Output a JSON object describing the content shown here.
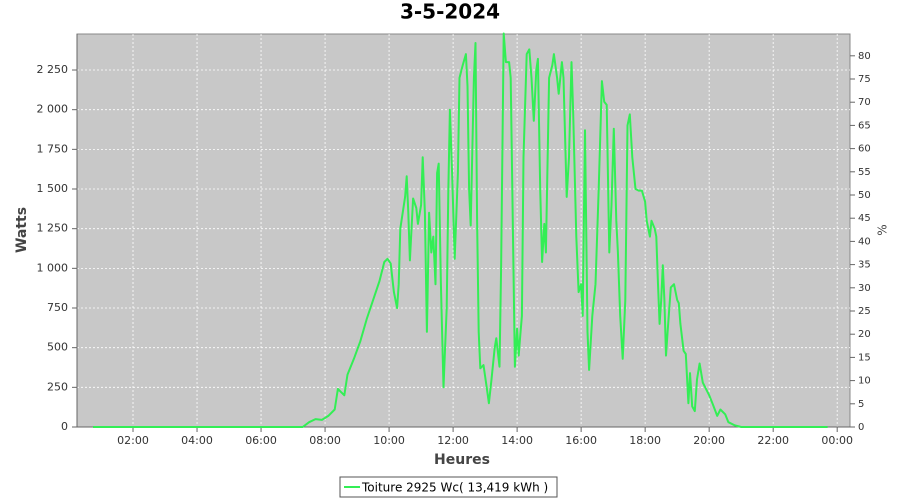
{
  "chart_data": {
    "type": "line",
    "title": "3-5-2024",
    "xlabel": "Heures",
    "ylabel": "Watts",
    "y2label": "%",
    "x": [
      0.75,
      7.3,
      7.5,
      7.7,
      7.9,
      8.1,
      8.3,
      8.4,
      8.6,
      8.7,
      8.9,
      9.1,
      9.3,
      9.5,
      9.7,
      9.85,
      9.95,
      10.05,
      10.15,
      10.25,
      10.3,
      10.35,
      10.5,
      10.55,
      10.6,
      10.65,
      10.75,
      10.85,
      10.9,
      11.0,
      11.05,
      11.12,
      11.18,
      11.25,
      11.32,
      11.38,
      11.45,
      11.5,
      11.55,
      11.62,
      11.7,
      11.8,
      11.85,
      11.9,
      11.97,
      12.05,
      12.15,
      12.2,
      12.3,
      12.4,
      12.45,
      12.5,
      12.55,
      12.65,
      12.7,
      12.75,
      12.8,
      12.85,
      12.95,
      13.05,
      13.12,
      13.2,
      13.3,
      13.35,
      13.45,
      13.5,
      13.58,
      13.65,
      13.75,
      13.8,
      13.87,
      13.93,
      14.0,
      14.05,
      14.1,
      14.15,
      14.2,
      14.3,
      14.38,
      14.45,
      14.52,
      14.6,
      14.65,
      14.72,
      14.78,
      14.85,
      14.9,
      15.0,
      15.1,
      15.15,
      15.25,
      15.3,
      15.4,
      15.45,
      15.55,
      15.62,
      15.7,
      15.75,
      15.85,
      15.92,
      16.0,
      16.05,
      16.12,
      16.2,
      16.25,
      16.35,
      16.45,
      16.55,
      16.65,
      16.72,
      16.8,
      16.88,
      16.95,
      17.02,
      17.1,
      17.15,
      17.22,
      17.3,
      17.38,
      17.45,
      17.52,
      17.6,
      17.7,
      17.8,
      17.9,
      18.0,
      18.05,
      18.15,
      18.2,
      18.3,
      18.35,
      18.4,
      18.45,
      18.5,
      18.55,
      18.6,
      18.65,
      18.7,
      18.8,
      18.9,
      19.0,
      19.05,
      19.1,
      19.2,
      19.27,
      19.35,
      19.4,
      19.47,
      19.55,
      19.62,
      19.7,
      19.8,
      20.0,
      20.1,
      20.25,
      20.35,
      20.5,
      20.6,
      20.8,
      21.0,
      23.7
    ],
    "series": [
      {
        "name": "Toiture 2925 Wc( 13,419 kWh )",
        "color": "#33ee55",
        "values": [
          0,
          0,
          30,
          50,
          45,
          70,
          110,
          240,
          200,
          330,
          430,
          540,
          680,
          800,
          920,
          1040,
          1060,
          1030,
          850,
          750,
          900,
          1250,
          1450,
          1580,
          1350,
          1050,
          1440,
          1380,
          1280,
          1400,
          1700,
          1350,
          600,
          1350,
          1100,
          1200,
          900,
          1600,
          1660,
          900,
          250,
          750,
          1480,
          2000,
          1600,
          1060,
          1600,
          2200,
          2280,
          2350,
          2150,
          1500,
          1270,
          2200,
          2420,
          1300,
          600,
          370,
          390,
          250,
          150,
          300,
          500,
          560,
          380,
          1000,
          2480,
          2300,
          2300,
          2200,
          1200,
          380,
          620,
          450,
          580,
          700,
          1700,
          2350,
          2380,
          2200,
          1930,
          2250,
          2320,
          1500,
          1040,
          1280,
          1100,
          2200,
          2280,
          2350,
          2200,
          2100,
          2300,
          2200,
          1450,
          1700,
          2300,
          2000,
          1200,
          850,
          900,
          700,
          1870,
          600,
          360,
          700,
          900,
          1500,
          2180,
          2050,
          2030,
          1100,
          1400,
          1880,
          1300,
          1100,
          700,
          430,
          800,
          1900,
          1970,
          1700,
          1500,
          1490,
          1490,
          1420,
          1300,
          1200,
          1300,
          1250,
          1200,
          900,
          650,
          800,
          1020,
          800,
          450,
          600,
          880,
          900,
          800,
          780,
          650,
          480,
          460,
          150,
          340,
          130,
          100,
          300,
          400,
          280,
          200,
          150,
          70,
          110,
          80,
          30,
          10,
          0,
          0
        ]
      }
    ],
    "xlim": [
      0.25,
      24.4
    ],
    "xticks": [
      {
        "value": 2,
        "label": "02:00"
      },
      {
        "value": 4,
        "label": "04:00"
      },
      {
        "value": 6,
        "label": "06:00"
      },
      {
        "value": 8,
        "label": "08:00"
      },
      {
        "value": 10,
        "label": "10:00"
      },
      {
        "value": 12,
        "label": "12:00"
      },
      {
        "value": 14,
        "label": "14:00"
      },
      {
        "value": 16,
        "label": "16:00"
      },
      {
        "value": 18,
        "label": "18:00"
      },
      {
        "value": 20,
        "label": "20:00"
      },
      {
        "value": 22,
        "label": "22:00"
      },
      {
        "value": 24,
        "label": "00:00"
      }
    ],
    "ylim": [
      0,
      2477
    ],
    "yticks": [
      0,
      250,
      500,
      750,
      {
        "value": 1000,
        "label": "1 000"
      },
      {
        "value": 1250,
        "label": "1 250"
      },
      {
        "value": 1500,
        "label": "1 500"
      },
      {
        "value": 1750,
        "label": "1 750"
      },
      {
        "value": 2000,
        "label": "2 000"
      },
      {
        "value": 2250,
        "label": "2 250"
      }
    ],
    "y2lim": [
      0,
      84.7
    ],
    "y2ticks": [
      0,
      5,
      10,
      15,
      20,
      25,
      30,
      35,
      40,
      45,
      50,
      55,
      60,
      65,
      70,
      75,
      80
    ],
    "grid": true,
    "legend": "bottom"
  }
}
